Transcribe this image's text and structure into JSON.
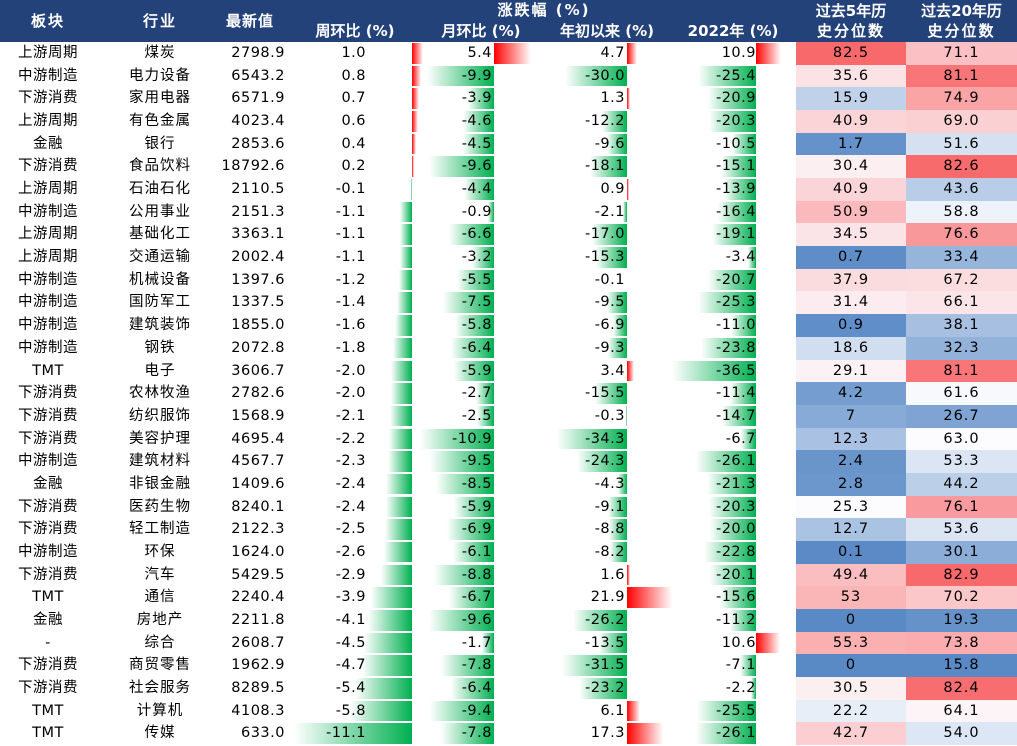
{
  "headers": {
    "sector": "板块",
    "industry": "行业",
    "latest": "最新值",
    "group": "涨跌幅 (%)",
    "weekly": "周环比 (%)",
    "monthly": "月环比 (%)",
    "ytd": "年初以来 (%)",
    "y2022": "2022年 (%)",
    "pct5_line1": "过去5年历",
    "pct5_line2": "史分位数",
    "pct20_line1": "过去20年历",
    "pct20_line2": "史分位数"
  },
  "colors": {
    "header_bg": "#24427a",
    "positive_bar": "#ff0000",
    "negative_bar": "#00b050",
    "high_pct": "#f8696b",
    "mid_pct": "#fcfcff",
    "low_pct": "#5a8ac6"
  },
  "chart_data": {
    "type": "table",
    "columns": [
      "板块",
      "行业",
      "最新值",
      "周环比 (%)",
      "月环比 (%)",
      "年初以来 (%)",
      "2022年 (%)",
      "过去5年历史分位数",
      "过去20年历史分位数"
    ],
    "rows": [
      {
        "sector": "上游周期",
        "industry": "煤炭",
        "latest": "2798.9",
        "weekly": "1.0",
        "monthly": "5.4",
        "ytd": "4.7",
        "y2022": "10.9",
        "pct5": "82.5",
        "pct20": "71.1"
      },
      {
        "sector": "中游制造",
        "industry": "电力设备",
        "latest": "6543.2",
        "weekly": "0.8",
        "monthly": "-9.9",
        "ytd": "-30.0",
        "y2022": "-25.4",
        "pct5": "35.6",
        "pct20": "81.1"
      },
      {
        "sector": "下游消费",
        "industry": "家用电器",
        "latest": "6571.9",
        "weekly": "0.7",
        "monthly": "-3.9",
        "ytd": "1.3",
        "y2022": "-20.9",
        "pct5": "15.9",
        "pct20": "74.9"
      },
      {
        "sector": "上游周期",
        "industry": "有色金属",
        "latest": "4023.4",
        "weekly": "0.6",
        "monthly": "-4.6",
        "ytd": "-12.2",
        "y2022": "-20.3",
        "pct5": "40.9",
        "pct20": "69.0"
      },
      {
        "sector": "金融",
        "industry": "银行",
        "latest": "2853.6",
        "weekly": "0.4",
        "monthly": "-4.5",
        "ytd": "-9.6",
        "y2022": "-10.5",
        "pct5": "1.7",
        "pct20": "51.6"
      },
      {
        "sector": "下游消费",
        "industry": "食品饮料",
        "latest": "18792.6",
        "weekly": "0.2",
        "monthly": "-9.6",
        "ytd": "-18.1",
        "y2022": "-15.1",
        "pct5": "30.4",
        "pct20": "82.6"
      },
      {
        "sector": "上游周期",
        "industry": "石油石化",
        "latest": "2110.5",
        "weekly": "-0.1",
        "monthly": "-4.4",
        "ytd": "0.9",
        "y2022": "-13.9",
        "pct5": "40.9",
        "pct20": "43.6"
      },
      {
        "sector": "中游制造",
        "industry": "公用事业",
        "latest": "2151.3",
        "weekly": "-1.1",
        "monthly": "-0.9",
        "ytd": "-2.1",
        "y2022": "-16.4",
        "pct5": "50.9",
        "pct20": "58.8"
      },
      {
        "sector": "上游周期",
        "industry": "基础化工",
        "latest": "3363.1",
        "weekly": "-1.1",
        "monthly": "-6.6",
        "ytd": "-17.0",
        "y2022": "-19.1",
        "pct5": "34.5",
        "pct20": "76.6"
      },
      {
        "sector": "上游周期",
        "industry": "交通运输",
        "latest": "2002.4",
        "weekly": "-1.1",
        "monthly": "-3.2",
        "ytd": "-15.3",
        "y2022": "-3.4",
        "pct5": "0.7",
        "pct20": "33.4"
      },
      {
        "sector": "中游制造",
        "industry": "机械设备",
        "latest": "1397.6",
        "weekly": "-1.2",
        "monthly": "-5.5",
        "ytd": "-0.1",
        "y2022": "-20.7",
        "pct5": "37.9",
        "pct20": "67.2"
      },
      {
        "sector": "中游制造",
        "industry": "国防军工",
        "latest": "1337.5",
        "weekly": "-1.4",
        "monthly": "-7.5",
        "ytd": "-9.5",
        "y2022": "-25.3",
        "pct5": "31.4",
        "pct20": "66.1"
      },
      {
        "sector": "中游制造",
        "industry": "建筑装饰",
        "latest": "1855.0",
        "weekly": "-1.6",
        "monthly": "-5.8",
        "ytd": "-6.9",
        "y2022": "-11.0",
        "pct5": "0.9",
        "pct20": "38.1"
      },
      {
        "sector": "中游制造",
        "industry": "钢铁",
        "latest": "2072.8",
        "weekly": "-1.8",
        "monthly": "-6.4",
        "ytd": "-9.3",
        "y2022": "-23.8",
        "pct5": "18.6",
        "pct20": "32.3"
      },
      {
        "sector": "TMT",
        "industry": "电子",
        "latest": "3606.7",
        "weekly": "-2.0",
        "monthly": "-5.9",
        "ytd": "3.4",
        "y2022": "-36.5",
        "pct5": "29.1",
        "pct20": "81.1"
      },
      {
        "sector": "下游消费",
        "industry": "农林牧渔",
        "latest": "2782.6",
        "weekly": "-2.0",
        "monthly": "-2.7",
        "ytd": "-15.5",
        "y2022": "-11.4",
        "pct5": "4.2",
        "pct20": "61.6"
      },
      {
        "sector": "下游消费",
        "industry": "纺织服饰",
        "latest": "1568.9",
        "weekly": "-2.1",
        "monthly": "-2.5",
        "ytd": "-0.3",
        "y2022": "-14.7",
        "pct5": "7",
        "pct20": "26.7"
      },
      {
        "sector": "下游消费",
        "industry": "美容护理",
        "latest": "4695.4",
        "weekly": "-2.2",
        "monthly": "-10.9",
        "ytd": "-34.3",
        "y2022": "-6.7",
        "pct5": "12.3",
        "pct20": "63.0"
      },
      {
        "sector": "中游制造",
        "industry": "建筑材料",
        "latest": "4567.7",
        "weekly": "-2.3",
        "monthly": "-9.5",
        "ytd": "-24.3",
        "y2022": "-26.1",
        "pct5": "2.4",
        "pct20": "53.3"
      },
      {
        "sector": "金融",
        "industry": "非银金融",
        "latest": "1409.6",
        "weekly": "-2.4",
        "monthly": "-8.5",
        "ytd": "-4.3",
        "y2022": "-21.3",
        "pct5": "2.8",
        "pct20": "44.2"
      },
      {
        "sector": "下游消费",
        "industry": "医药生物",
        "latest": "8240.1",
        "weekly": "-2.4",
        "monthly": "-5.9",
        "ytd": "-9.1",
        "y2022": "-20.3",
        "pct5": "25.3",
        "pct20": "76.1"
      },
      {
        "sector": "下游消费",
        "industry": "轻工制造",
        "latest": "2122.3",
        "weekly": "-2.5",
        "monthly": "-6.9",
        "ytd": "-8.8",
        "y2022": "-20.0",
        "pct5": "12.7",
        "pct20": "53.6"
      },
      {
        "sector": "中游制造",
        "industry": "环保",
        "latest": "1624.0",
        "weekly": "-2.6",
        "monthly": "-6.1",
        "ytd": "-8.2",
        "y2022": "-22.8",
        "pct5": "0.1",
        "pct20": "30.1"
      },
      {
        "sector": "下游消费",
        "industry": "汽车",
        "latest": "5429.5",
        "weekly": "-2.9",
        "monthly": "-8.8",
        "ytd": "1.6",
        "y2022": "-20.1",
        "pct5": "49.4",
        "pct20": "82.9"
      },
      {
        "sector": "TMT",
        "industry": "通信",
        "latest": "2240.4",
        "weekly": "-3.9",
        "monthly": "-6.7",
        "ytd": "21.9",
        "y2022": "-15.6",
        "pct5": "53",
        "pct20": "70.2"
      },
      {
        "sector": "金融",
        "industry": "房地产",
        "latest": "2211.8",
        "weekly": "-4.1",
        "monthly": "-9.6",
        "ytd": "-26.2",
        "y2022": "-11.2",
        "pct5": "0",
        "pct20": "19.3"
      },
      {
        "sector": "-",
        "industry": "综合",
        "latest": "2608.7",
        "weekly": "-4.5",
        "monthly": "-1.7",
        "ytd": "-13.5",
        "y2022": "10.6",
        "pct5": "55.3",
        "pct20": "73.8"
      },
      {
        "sector": "下游消费",
        "industry": "商贸零售",
        "latest": "1962.9",
        "weekly": "-4.7",
        "monthly": "-7.8",
        "ytd": "-31.5",
        "y2022": "-7.1",
        "pct5": "0",
        "pct20": "15.8"
      },
      {
        "sector": "下游消费",
        "industry": "社会服务",
        "latest": "8289.5",
        "weekly": "-5.4",
        "monthly": "-6.4",
        "ytd": "-23.2",
        "y2022": "-2.2",
        "pct5": "30.5",
        "pct20": "82.4"
      },
      {
        "sector": "TMT",
        "industry": "计算机",
        "latest": "4108.3",
        "weekly": "-5.8",
        "monthly": "-9.4",
        "ytd": "6.1",
        "y2022": "-25.5",
        "pct5": "22.2",
        "pct20": "64.1"
      },
      {
        "sector": "TMT",
        "industry": "传媒",
        "latest": "633.0",
        "weekly": "-11.1",
        "monthly": "-7.8",
        "ytd": "17.3",
        "y2022": "-26.1",
        "pct5": "42.7",
        "pct20": "54.0"
      }
    ]
  }
}
